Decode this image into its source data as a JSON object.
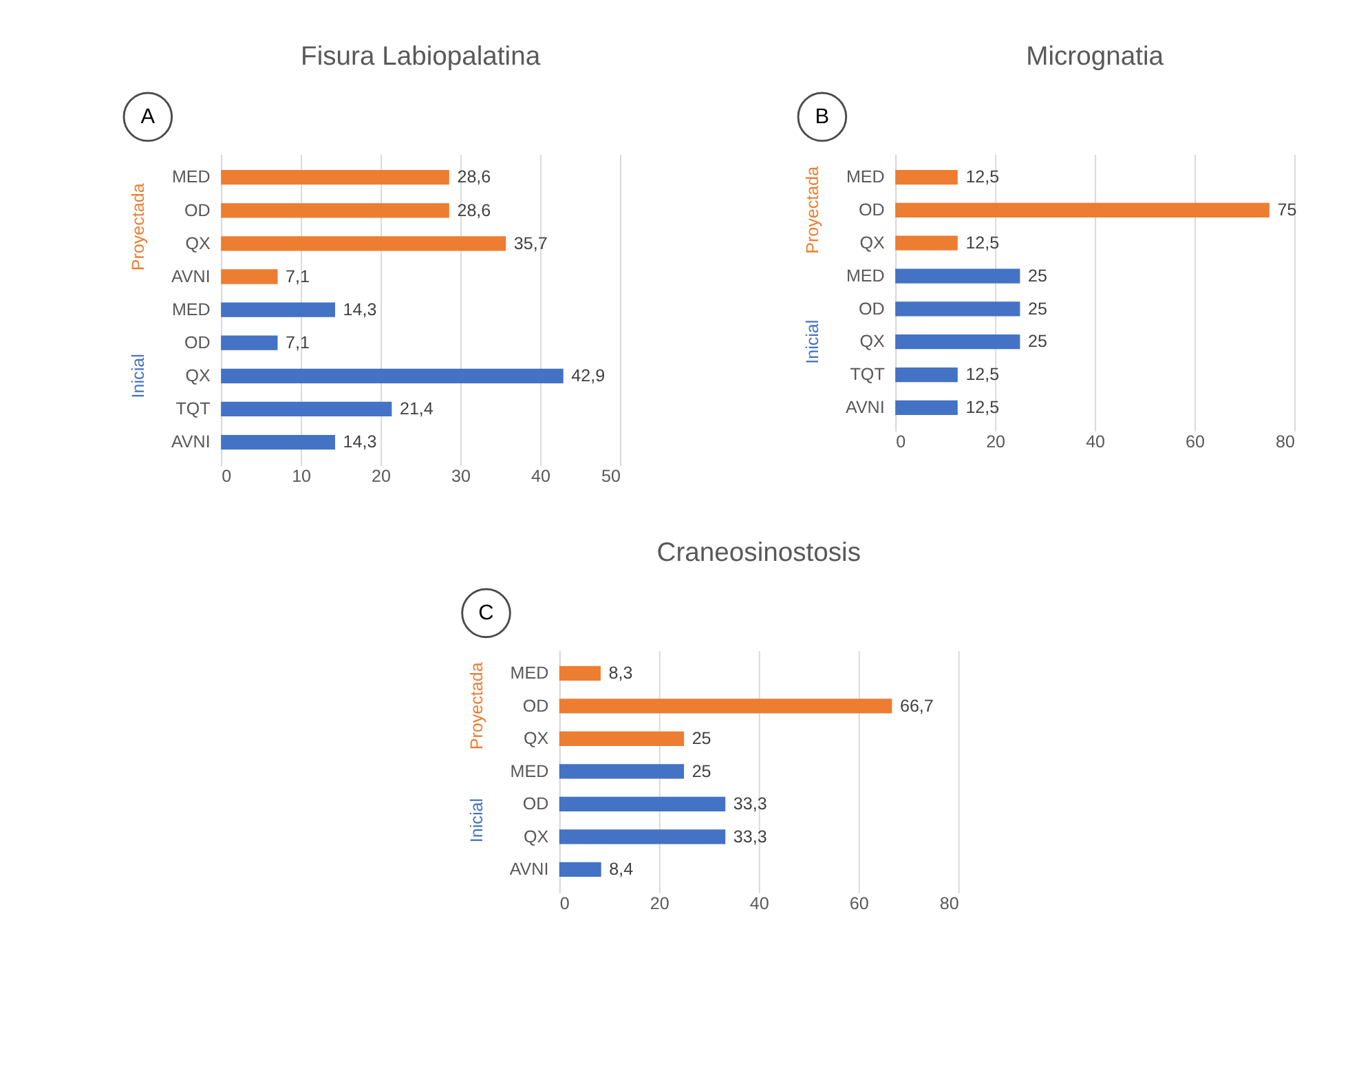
{
  "chart_data": [
    {
      "type": "bar",
      "orientation": "horizontal",
      "title": "Fisura Labiopalatina",
      "annotations": [
        "A"
      ],
      "categories": [
        "MED",
        "OD",
        "QX",
        "AVNI",
        "MED",
        "OD",
        "QX",
        "TQT",
        "AVNI"
      ],
      "series": [
        {
          "name": "Proyectada",
          "color": "#ed7d31",
          "values": [
            28.6,
            28.6,
            35.7,
            7.1,
            null,
            null,
            null,
            null,
            null
          ],
          "value_labels": [
            "28,6",
            "28,6",
            "35,7",
            "7,1",
            null,
            null,
            null,
            null,
            null
          ]
        },
        {
          "name": "Inicial",
          "color": "#4472c4",
          "values": [
            null,
            null,
            null,
            null,
            14.3,
            7.1,
            42.9,
            21.4,
            14.3
          ],
          "value_labels": [
            null,
            null,
            null,
            null,
            "14,3",
            "7,1",
            "42,9",
            "21,4",
            "14,3"
          ]
        }
      ],
      "xlim": [
        0,
        50
      ],
      "xticks": [
        0,
        10,
        20,
        30,
        40,
        50
      ],
      "grid": "x"
    },
    {
      "type": "bar",
      "orientation": "horizontal",
      "title": "Micrognatia",
      "annotations": [
        "B"
      ],
      "categories": [
        "MED",
        "OD",
        "QX",
        "MED",
        "OD",
        "QX",
        "TQT",
        "AVNI"
      ],
      "series": [
        {
          "name": "Proyectada",
          "color": "#ed7d31",
          "values": [
            12.5,
            75,
            12.5,
            null,
            null,
            null,
            null,
            null
          ],
          "value_labels": [
            "12,5",
            "75",
            "12,5",
            null,
            null,
            null,
            null,
            null
          ]
        },
        {
          "name": "Inicial",
          "color": "#4472c4",
          "values": [
            null,
            null,
            null,
            25,
            25,
            25,
            12.5,
            12.5
          ],
          "value_labels": [
            null,
            null,
            null,
            "25",
            "25",
            "25",
            "12,5",
            "12,5"
          ]
        }
      ],
      "xlim": [
        0,
        80
      ],
      "xticks": [
        0,
        20,
        40,
        60,
        80
      ],
      "grid": "x"
    },
    {
      "type": "bar",
      "orientation": "horizontal",
      "title": "Craneosinostosis",
      "annotations": [
        "C"
      ],
      "categories": [
        "MED",
        "OD",
        "QX",
        "MED",
        "OD",
        "QX",
        "AVNI"
      ],
      "series": [
        {
          "name": "Proyectada",
          "color": "#ed7d31",
          "values": [
            8.3,
            66.7,
            25,
            null,
            null,
            null,
            null
          ],
          "value_labels": [
            "8,3",
            "66,7",
            "25",
            null,
            null,
            null,
            null
          ]
        },
        {
          "name": "Inicial",
          "color": "#4472c4",
          "values": [
            null,
            null,
            null,
            25,
            33.3,
            33.3,
            8.4
          ],
          "value_labels": [
            null,
            null,
            null,
            "25",
            "33,3",
            "33,3",
            "8,4"
          ]
        }
      ],
      "xlim": [
        0,
        80
      ],
      "xticks": [
        0,
        20,
        40,
        60,
        80
      ],
      "grid": "x"
    }
  ]
}
